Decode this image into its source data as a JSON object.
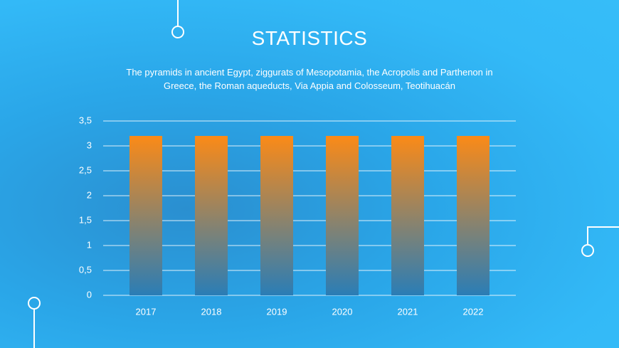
{
  "chart_data": {
    "type": "bar",
    "title": "STATISTICS",
    "subtitle": "The pyramids in ancient Egypt, ziggurats of Mesopotamia, the Acropolis and Parthenon in Greece, the Roman aqueducts, Via Appia and Colosseum, Teotihuacán",
    "categories": [
      "2017",
      "2018",
      "2019",
      "2020",
      "2021",
      "2022"
    ],
    "values": [
      3.2,
      3.2,
      3.2,
      3.2,
      3.2,
      3.2
    ],
    "gradient": [
      "#fb8a17",
      "#2a7db6"
    ],
    "ylim": [
      0,
      3.5
    ],
    "yticks": [
      0,
      {
        "value": 0.5,
        "label": "0,5"
      },
      1,
      {
        "value": 1.5,
        "label": "1,5"
      },
      2,
      {
        "value": 2.5,
        "label": "2,5"
      },
      3,
      {
        "value": 3.5,
        "label": "3,5"
      }
    ],
    "grid": true
  }
}
